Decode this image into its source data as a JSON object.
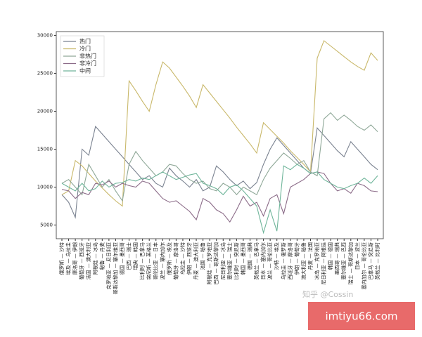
{
  "chart_data": {
    "type": "line",
    "categories": [
      "俄罗斯 — 沙特",
      "埃及 — 乌拉圭",
      "摩洛哥 — 伊朗",
      "葡萄牙 — 西班牙",
      "法国 — 澳大利亚",
      "阿根廷 — 冰岛",
      "秘鲁 — 丹麦",
      "克罗地亚 — 尼日利亚",
      "哥斯达黎加 — 塞尔维亚",
      "德国 — 墨西哥",
      "巴西 — 瑞士",
      "瑞典 — 韩国",
      "比利时 — 巴拿马",
      "突尼斯 — 英格兰",
      "哥伦比亚 — 日本",
      "波兰 — 塞内加尔",
      "俄罗斯 — 埃及",
      "葡萄牙 — 摩洛哥",
      "乌拉圭 — 沙特",
      "伊朗 — 西班牙",
      "丹麦 — 澳大利亚",
      "法国 — 秘鲁",
      "阿根廷 — 克罗地亚",
      "巴西 — 哥斯达黎加",
      "尼日利亚 — 冰岛",
      "塞尔维亚 — 瑞士",
      "比利时 — 突尼斯",
      "韩国 — 墨西哥",
      "德国 — 瑞典",
      "英格兰 — 巴拿马",
      "日本 — 塞内加尔",
      "波兰 — 哥伦比亚",
      "沙特 — 埃及",
      "乌拉圭 — 俄罗斯",
      "西班牙 — 摩洛哥",
      "伊朗 — 葡萄牙",
      "澳大利亚 — 秘鲁",
      "丹麦 — 法国",
      "冰岛 — 克罗地亚",
      "尼日利亚 — 阿根廷",
      "韩国 — 德国",
      "墨西哥 — 瑞典",
      "塞尔维亚 — 巴西",
      "瑞士 — 哥斯达黎加",
      "日本 — 波兰",
      "塞内加尔 — 哥伦比亚",
      "巴拿马 — 突尼斯",
      "英格兰 — 比利时"
    ],
    "series": [
      {
        "name": "热门",
        "color": "#7a8290",
        "values": [
          9000,
          8000,
          6000,
          15000,
          14200,
          18000,
          17000,
          16000,
          15000,
          14000,
          13000,
          12000,
          11000,
          11500,
          10500,
          10000,
          12500,
          11500,
          10800,
          10000,
          11000,
          9500,
          10000,
          12800,
          12000,
          11000,
          10200,
          10800,
          9800,
          10600,
          13000,
          15000,
          16500,
          15500,
          14500,
          13500,
          12500,
          11800,
          17800,
          16800,
          15800,
          14800,
          14000,
          16000,
          15000,
          14000,
          13000,
          12300
        ]
      },
      {
        "name": "冷门",
        "color": "#c9b86a",
        "values": [
          9000,
          9500,
          13500,
          12800,
          11800,
          10800,
          9900,
          9000,
          8200,
          7500,
          24000,
          22700,
          21300,
          20000,
          23500,
          26500,
          25700,
          24500,
          23300,
          22000,
          20500,
          23500,
          22400,
          21300,
          20200,
          19100,
          17900,
          16800,
          15700,
          14500,
          18500,
          17600,
          16700,
          15800,
          14800,
          13900,
          13000,
          12000,
          27000,
          29300,
          28600,
          27900,
          27200,
          26500,
          25900,
          25400,
          27700,
          26700
        ]
      },
      {
        "name": "非热门",
        "color": "#8fa898",
        "values": [
          10500,
          11000,
          10000,
          9000,
          13000,
          11500,
          10000,
          11000,
          9500,
          8200,
          13000,
          14700,
          13500,
          12500,
          11500,
          12000,
          13000,
          12800,
          11800,
          11000,
          10500,
          10800,
          9800,
          9500,
          10500,
          10000,
          9000,
          10000,
          9500,
          9000,
          11000,
          12500,
          13500,
          14500,
          13800,
          13000,
          13500,
          12000,
          11500,
          19000,
          19800,
          18800,
          19500,
          18800,
          18000,
          17500,
          18200,
          17300
        ]
      },
      {
        "name": "非冷门",
        "color": "#8b6b88",
        "values": [
          9700,
          9500,
          8500,
          9300,
          9000,
          10500,
          10300,
          10800,
          10000,
          10500,
          10200,
          10000,
          10800,
          10500,
          9500,
          8500,
          8000,
          8200,
          7500,
          6800,
          5700,
          8500,
          8000,
          7000,
          6500,
          5400,
          7000,
          8800,
          7500,
          8000,
          6200,
          8500,
          9000,
          6500,
          10000,
          10500,
          11000,
          11800,
          12000,
          11800,
          10500,
          9500,
          9800,
          9200,
          10500,
          10200,
          9500,
          9400
        ]
      },
      {
        "name": "中间",
        "color": "#6fb59a",
        "values": [
          10500,
          10000,
          9500,
          10500,
          9500,
          9800,
          10800,
          10000,
          10500,
          10600,
          11000,
          10800,
          11200,
          11000,
          11500,
          12000,
          11500,
          11000,
          11300,
          11600,
          11800,
          10500,
          10200,
          9800,
          9000,
          10000,
          10300,
          9500,
          8500,
          7500,
          4000,
          7000,
          4200,
          12800,
          12300,
          13000,
          12500,
          11800,
          12000,
          11000,
          10500,
          10000,
          9800,
          10200,
          10500,
          11200,
          10500,
          11500
        ]
      }
    ],
    "ylim": [
      3200,
      30500
    ],
    "yticks": [
      5000,
      10000,
      15000,
      20000,
      25000,
      30000
    ],
    "grid": false,
    "legend": "upper left"
  },
  "watermark": "知乎 @Cossin",
  "site_label": "imtiyu66.com"
}
